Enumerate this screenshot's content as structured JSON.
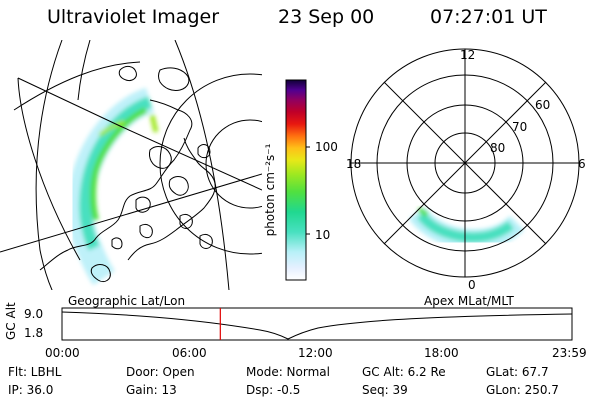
{
  "header": {
    "title": "Ultraviolet Imager",
    "date": "23 Sep 00",
    "time": "07:27:01 UT"
  },
  "colorbar": {
    "unit_label": "photon cm⁻²s⁻¹",
    "ticks": [
      "100",
      "10"
    ],
    "scale": "log",
    "colors": [
      "#ffffff",
      "#e6f0ff",
      "#b8f0f8",
      "#48e0c0",
      "#20d890",
      "#50e040",
      "#a0e820",
      "#e8e818",
      "#ffc018",
      "#ff7010",
      "#e81810",
      "#c00028",
      "#900060",
      "#500090",
      "#100038"
    ]
  },
  "map_labels": {
    "left": "Geographic Lat/Lon",
    "right": "Apex MLat/MLT"
  },
  "polar": {
    "mlt_labels": {
      "top": "12",
      "left": "18",
      "right": "6",
      "bottom": "0"
    },
    "lat_labels": [
      "60",
      "70",
      "80"
    ]
  },
  "orbit": {
    "ylabel": "GC Alt",
    "y_ticks": [
      "9.0",
      "1.8"
    ],
    "x_ticks": [
      "00:00",
      "06:00",
      "12:00",
      "18:00",
      "23:59"
    ],
    "current_time_marker": "07:27",
    "marker_color": "#e00000"
  },
  "info": {
    "filter": "Flt: LBHL",
    "ip": "IP: 36.0",
    "door": "Door: Open",
    "gain": "Gain: 13",
    "mode": "Mode: Normal",
    "dsp": "Dsp:  -0.5",
    "gc_alt": "GC Alt: 6.2 Re",
    "seq": "Seq: 39",
    "glat": "GLat: 67.7",
    "glon": "GLon: 250.7"
  }
}
